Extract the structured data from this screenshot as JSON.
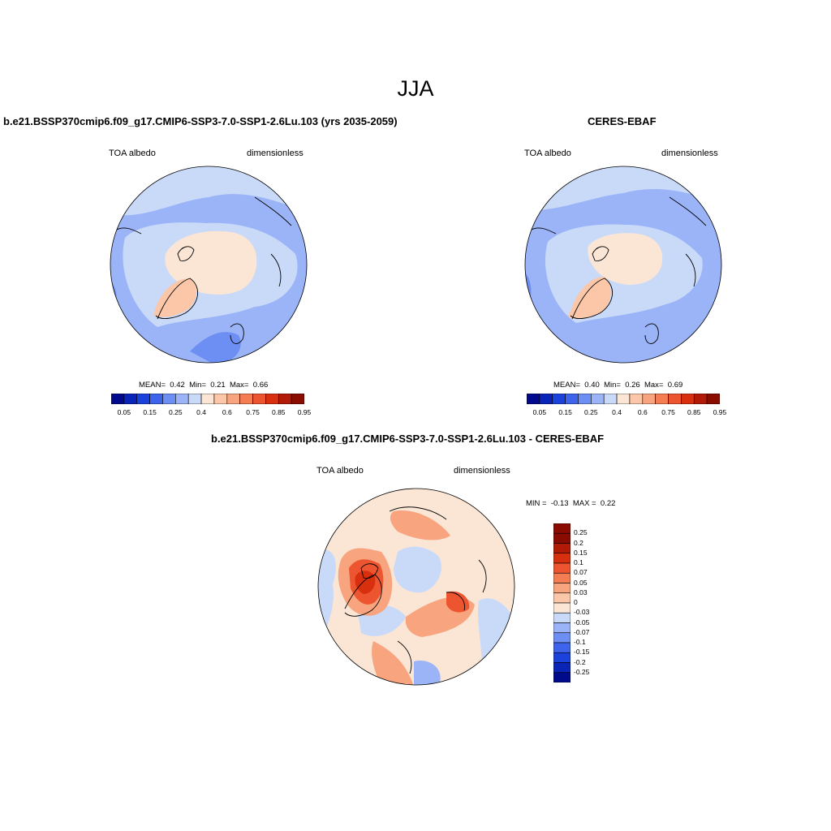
{
  "season_title": "JJA",
  "panels": {
    "model": {
      "title": "b.e21.BSSP370cmip6.f09_g17.CMIP6-SSP3-7.0-SSP1-2.6Lu.103 (yrs 2035-2059)",
      "variable": "TOA albedo",
      "units": "dimensionless",
      "stats": {
        "mean_label": "MEAN=",
        "mean": "0.42",
        "min_label": "Min=",
        "min": "0.21",
        "max_label": "Max=",
        "max": "0.66"
      }
    },
    "obs": {
      "title": "CERES-EBAF",
      "variable": "TOA albedo",
      "units": "dimensionless",
      "stats": {
        "mean_label": "MEAN=",
        "mean": "0.40",
        "min_label": "Min=",
        "min": "0.26",
        "max_label": "Max=",
        "max": "0.69"
      }
    },
    "diff": {
      "title": "b.e21.BSSP370cmip6.f09_g17.CMIP6-SSP3-7.0-SSP1-2.6Lu.103 - CERES-EBAF",
      "variable": "TOA albedo",
      "units": "dimensionless",
      "stats": {
        "min_label": "MIN =",
        "min": "-0.13",
        "max_label": "MAX =",
        "max": "0.22"
      }
    }
  },
  "colorbar_abs": {
    "tick_labels": [
      "0.05",
      "0.15",
      "0.25",
      "0.4",
      "0.6",
      "0.75",
      "0.85",
      "0.95"
    ],
    "colors": [
      "#000a8a",
      "#0a24b8",
      "#1c42dc",
      "#3d64eb",
      "#6d8ef2",
      "#9bb4f7",
      "#c9daf9",
      "#fbe6d6",
      "#fbc7a8",
      "#f8a47e",
      "#f47d54",
      "#ec5530",
      "#d8300f",
      "#b01a06",
      "#8a0c00"
    ]
  },
  "colorbar_diff": {
    "tick_labels": [
      "0.25",
      "0.2",
      "0.15",
      "0.1",
      "0.07",
      "0.05",
      "0.03",
      "0",
      "-0.03",
      "-0.05",
      "-0.07",
      "-0.1",
      "-0.15",
      "-0.2",
      "-0.25"
    ],
    "colors": [
      "#8a0c00",
      "#b01a06",
      "#d8300f",
      "#ec5530",
      "#f47d54",
      "#f8a47e",
      "#fbc7a8",
      "#fbe6d6",
      "#c9daf9",
      "#9bb4f7",
      "#6d8ef2",
      "#3d64eb",
      "#1c42dc",
      "#0a24b8",
      "#000a8a"
    ]
  },
  "map_colors": {
    "abs_ocean_deep": "#9bb4f7",
    "abs_ocean": "#c9daf9",
    "abs_ice": "#fbe6d6",
    "abs_greenland": "#fbc7a8",
    "abs_low": "#6d8ef2",
    "diff_neutral": "#fbe6d6",
    "diff_neg": "#c9daf9",
    "diff_neg2": "#9bb4f7",
    "diff_pos": "#f8a47e",
    "diff_pos2": "#ec5530",
    "diff_pos3": "#d8300f"
  }
}
